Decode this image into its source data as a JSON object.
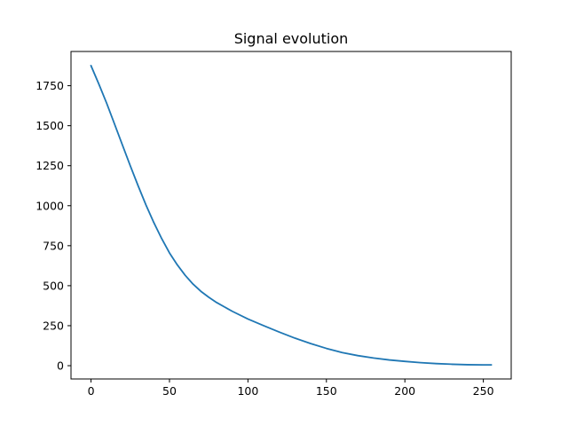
{
  "chart_data": {
    "type": "line",
    "title": "Signal evolution",
    "xlabel": "",
    "ylabel": "",
    "xlim": [
      -12.75,
      267.75
    ],
    "ylim": [
      -83,
      1964
    ],
    "xticks": [
      0,
      50,
      100,
      150,
      200,
      250
    ],
    "yticks": [
      0,
      250,
      500,
      750,
      1000,
      1250,
      1500,
      1750
    ],
    "grid": false,
    "legend": "none",
    "series": [
      {
        "color": "#1f77b4",
        "x": [
          0,
          5,
          10,
          15,
          20,
          25,
          30,
          35,
          40,
          45,
          50,
          55,
          60,
          65,
          70,
          75,
          80,
          90,
          100,
          110,
          120,
          130,
          140,
          150,
          160,
          170,
          180,
          190,
          200,
          210,
          220,
          230,
          240,
          250,
          255
        ],
        "y": [
          1875,
          1760,
          1640,
          1510,
          1380,
          1250,
          1125,
          1005,
          895,
          795,
          705,
          630,
          565,
          510,
          465,
          428,
          395,
          340,
          292,
          250,
          210,
          172,
          138,
          108,
          82,
          63,
          48,
          36,
          27,
          19,
          13,
          9,
          6,
          5,
          5
        ]
      }
    ]
  }
}
